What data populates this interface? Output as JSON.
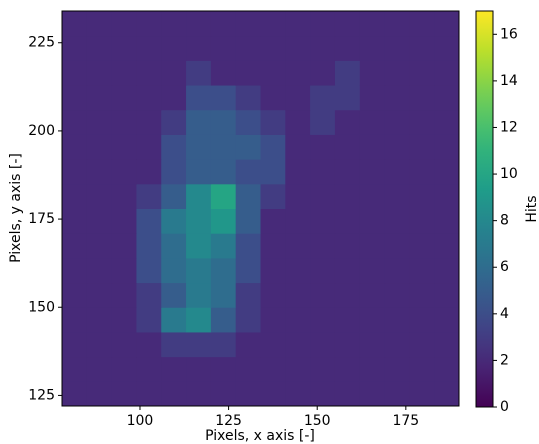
{
  "chart_data": {
    "type": "heatmap",
    "xlabel": "Pixels, x axis [-]",
    "ylabel": "Pixels, y axis [-]",
    "colorbar_label": "Hits",
    "colormap": "viridis",
    "xlim": [
      78,
      190
    ],
    "ylim": [
      122,
      234
    ],
    "xticks": [
      100,
      125,
      150,
      175
    ],
    "yticks": [
      125,
      150,
      175,
      200,
      225
    ],
    "clim": [
      0,
      17
    ],
    "cticks": [
      0,
      2,
      4,
      6,
      8,
      10,
      12,
      14,
      16
    ],
    "x_bins": [
      78,
      85,
      92,
      99,
      106,
      113,
      120,
      127,
      134,
      141,
      148,
      155,
      162,
      169,
      176,
      183,
      190
    ],
    "y_bins": [
      122,
      129,
      136,
      143,
      150,
      157,
      164,
      171,
      178,
      185,
      192,
      199,
      206,
      213,
      220,
      227,
      234
    ],
    "z": [
      [
        2,
        2,
        2,
        2,
        2,
        2,
        2,
        2,
        2,
        2,
        2,
        2,
        2,
        2,
        2,
        2
      ],
      [
        2,
        2,
        2,
        2,
        2,
        2,
        2,
        2,
        2,
        2,
        2,
        2,
        2,
        2,
        2,
        2
      ],
      [
        2,
        2,
        2,
        2,
        3,
        3,
        3,
        2,
        2,
        2,
        2,
        2,
        2,
        2,
        2,
        2
      ],
      [
        2,
        2,
        2,
        3,
        7,
        8,
        5,
        3,
        2,
        2,
        2,
        2,
        2,
        2,
        2,
        2
      ],
      [
        2,
        2,
        2,
        3,
        5,
        7,
        6,
        3,
        2,
        2,
        2,
        2,
        2,
        2,
        2,
        2
      ],
      [
        2,
        2,
        2,
        4,
        6,
        7,
        6,
        4,
        2,
        2,
        2,
        2,
        2,
        2,
        2,
        2
      ],
      [
        2,
        2,
        2,
        4,
        6,
        8,
        7,
        4,
        2,
        2,
        2,
        2,
        2,
        2,
        2,
        2
      ],
      [
        2,
        2,
        2,
        4,
        7,
        8,
        9,
        5,
        2,
        2,
        2,
        2,
        2,
        2,
        2,
        2
      ],
      [
        2,
        2,
        2,
        3,
        5,
        8,
        10,
        5,
        3,
        2,
        2,
        2,
        2,
        2,
        2,
        2
      ],
      [
        2,
        2,
        2,
        2,
        4,
        5,
        5,
        4,
        4,
        2,
        2,
        2,
        2,
        2,
        2,
        2
      ],
      [
        2,
        2,
        2,
        2,
        4,
        5,
        5,
        5,
        4,
        2,
        2,
        2,
        2,
        2,
        2,
        2
      ],
      [
        2,
        2,
        2,
        2,
        3,
        5,
        5,
        4,
        3,
        2,
        3,
        2,
        2,
        2,
        2,
        2
      ],
      [
        2,
        2,
        2,
        2,
        2,
        4,
        4,
        3,
        2,
        2,
        3,
        3,
        2,
        2,
        2,
        2
      ],
      [
        2,
        2,
        2,
        2,
        2,
        3,
        2,
        2,
        2,
        2,
        2,
        3,
        2,
        2,
        2,
        2
      ],
      [
        2,
        2,
        2,
        2,
        2,
        2,
        2,
        2,
        2,
        2,
        2,
        2,
        2,
        2,
        2,
        2
      ],
      [
        2,
        2,
        2,
        2,
        2,
        2,
        2,
        2,
        2,
        2,
        2,
        2,
        2,
        2,
        2,
        2
      ]
    ]
  }
}
